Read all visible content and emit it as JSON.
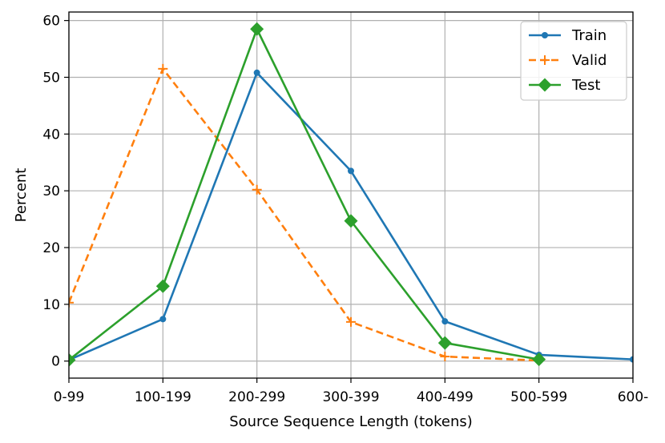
{
  "chart_data": {
    "type": "line",
    "title": "",
    "xlabel": "Source Sequence Length (tokens)",
    "ylabel": "Percent",
    "categories": [
      "0-99",
      "100-199",
      "200-299",
      "300-399",
      "400-499",
      "500-599",
      "600-"
    ],
    "ylim": [
      -3,
      61.5
    ],
    "yticks": [
      0,
      10,
      20,
      30,
      40,
      50,
      60
    ],
    "grid": true,
    "legend_position": "top-right",
    "series": [
      {
        "name": "Train",
        "color": "#1f77b4",
        "line_style": "solid",
        "marker": "dot",
        "values": [
          0.2,
          7.4,
          50.8,
          33.5,
          7.0,
          1.1,
          0.3
        ]
      },
      {
        "name": "Valid",
        "color": "#ff7f0e",
        "line_style": "dashed",
        "marker": "plus",
        "values": [
          10.3,
          51.5,
          30.2,
          6.9,
          0.8,
          0.1,
          null
        ]
      },
      {
        "name": "Test",
        "color": "#2ca02c",
        "line_style": "solid",
        "marker": "diamond",
        "values": [
          0.2,
          13.2,
          58.5,
          24.7,
          3.2,
          0.3,
          null
        ]
      }
    ]
  }
}
